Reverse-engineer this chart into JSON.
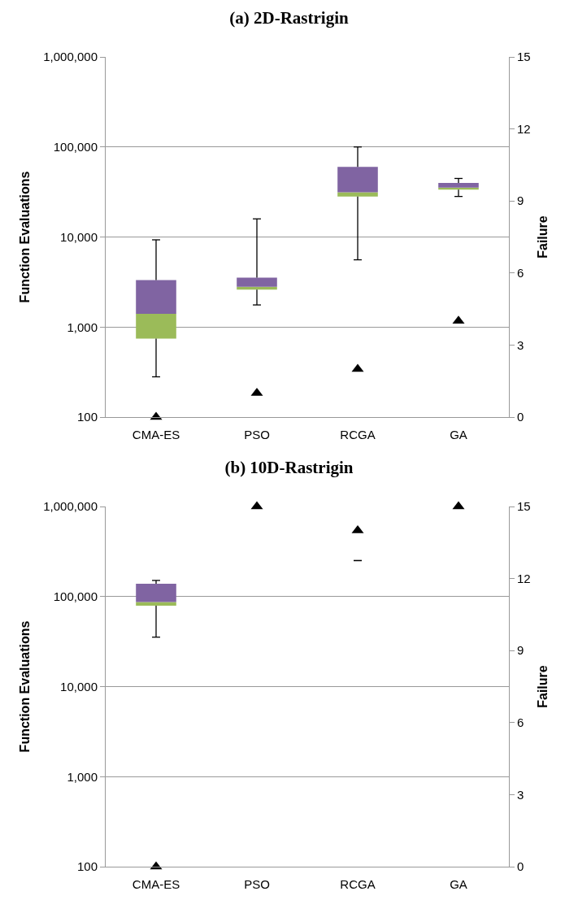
{
  "chart_data": [
    {
      "type": "box",
      "title": "(a) 2D-Rastrigin",
      "ylabel": "Function Evaluations",
      "y2label": "Failure",
      "categories": [
        "CMA-ES",
        "PSO",
        "RCGA",
        "GA"
      ],
      "log": "y",
      "grid": "y",
      "marker": "triangle",
      "ylim": [
        100,
        1000000
      ],
      "yticks": [
        {
          "value": 100,
          "label": "100"
        },
        {
          "value": 1000,
          "label": "1,000"
        },
        {
          "value": 10000,
          "label": "10,000"
        },
        {
          "value": 100000,
          "label": "100,000"
        },
        {
          "value": 1000000,
          "label": "1,000,000"
        }
      ],
      "y2lim": [
        0,
        15
      ],
      "y2ticks": [
        0,
        3,
        6,
        9,
        12,
        15
      ],
      "series": [
        {
          "colors": [
            [
              "#9bbb59",
              "#8064a2"
            ],
            [
              "#9bbb59",
              "#8064a2"
            ],
            [
              "#9bbb59",
              "#8064a2"
            ],
            [
              "#9bbb59",
              "#8064a2"
            ]
          ],
          "boxes": [
            {
              "low": 280,
              "q1": 745,
              "median": 1400,
              "q3": 3330,
              "high": 9300
            },
            {
              "low": 1760,
              "q1": 2600,
              "median": 2800,
              "q3": 3540,
              "high": 15900
            },
            {
              "low": 5580,
              "q1": 28200,
              "median": 31300,
              "q3": 60200,
              "high": 100000
            },
            {
              "low": 28200,
              "q1": 33600,
              "median": 35400,
              "q3": 39800,
              "high": 44700
            }
          ]
        },
        {
          "type": "scatter",
          "axis": "y2",
          "color": "#000000",
          "values": [
            0,
            1,
            2,
            4
          ]
        }
      ]
    },
    {
      "type": "box",
      "title": "(b) 10D-Rastrigin",
      "ylabel": "Function Evaluations",
      "y2label": "Failure",
      "categories": [
        "CMA-ES",
        "PSO",
        "RCGA",
        "GA"
      ],
      "log": "y",
      "grid": "y",
      "marker": "triangle",
      "ylim": [
        100,
        1000000
      ],
      "yticks": [
        {
          "value": 100,
          "label": "100"
        },
        {
          "value": 1000,
          "label": "1,000"
        },
        {
          "value": 10000,
          "label": "10,000"
        },
        {
          "value": 100000,
          "label": "100,000"
        },
        {
          "value": 1000000,
          "label": "1,000,000"
        }
      ],
      "y2lim": [
        0,
        15
      ],
      "y2ticks": [
        0,
        3,
        6,
        9,
        12,
        15
      ],
      "series": [
        {
          "colors": [
            [
              "#9bbb59",
              "#8064a2"
            ],
            null,
            [
              "#9bbb59",
              "#8064a2"
            ],
            null
          ],
          "boxes": [
            {
              "low": 35400,
              "q1": 79300,
              "median": 86900,
              "q3": 139000,
              "high": 151000
            },
            null,
            {
              "low": 251000,
              "q1": 251000,
              "median": 251000,
              "q3": 251000,
              "high": 251000
            },
            null
          ]
        },
        {
          "type": "scatter",
          "axis": "y2",
          "color": "#000000",
          "values": [
            0,
            15,
            14,
            15
          ]
        }
      ]
    }
  ]
}
